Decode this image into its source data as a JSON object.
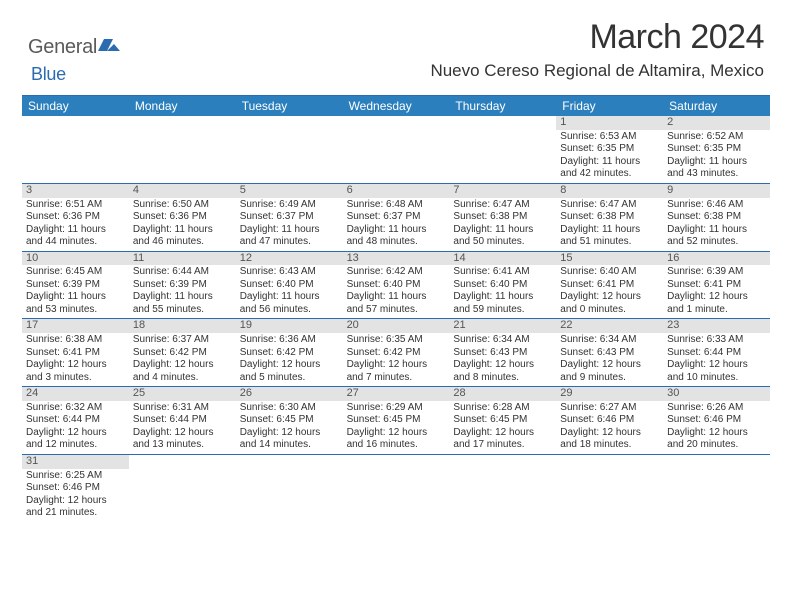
{
  "brand": {
    "main": "General",
    "sub": "Blue"
  },
  "title": "March 2024",
  "location": "Nuevo Cereso Regional de Altamira, Mexico",
  "dow": [
    "Sunday",
    "Monday",
    "Tuesday",
    "Wednesday",
    "Thursday",
    "Friday",
    "Saturday"
  ],
  "colors": {
    "header_bar": "#2b7fbd",
    "rule": "#2b6cb0",
    "day_bar": "#e3e3e3",
    "logo_grey": "#5a5a5a",
    "logo_blue": "#2b6cb0"
  },
  "weeks": [
    [
      null,
      null,
      null,
      null,
      null,
      {
        "n": "1",
        "sr": "Sunrise: 6:53 AM",
        "ss": "Sunset: 6:35 PM",
        "d1": "Daylight: 11 hours",
        "d2": "and 42 minutes."
      },
      {
        "n": "2",
        "sr": "Sunrise: 6:52 AM",
        "ss": "Sunset: 6:35 PM",
        "d1": "Daylight: 11 hours",
        "d2": "and 43 minutes."
      }
    ],
    [
      {
        "n": "3",
        "sr": "Sunrise: 6:51 AM",
        "ss": "Sunset: 6:36 PM",
        "d1": "Daylight: 11 hours",
        "d2": "and 44 minutes."
      },
      {
        "n": "4",
        "sr": "Sunrise: 6:50 AM",
        "ss": "Sunset: 6:36 PM",
        "d1": "Daylight: 11 hours",
        "d2": "and 46 minutes."
      },
      {
        "n": "5",
        "sr": "Sunrise: 6:49 AM",
        "ss": "Sunset: 6:37 PM",
        "d1": "Daylight: 11 hours",
        "d2": "and 47 minutes."
      },
      {
        "n": "6",
        "sr": "Sunrise: 6:48 AM",
        "ss": "Sunset: 6:37 PM",
        "d1": "Daylight: 11 hours",
        "d2": "and 48 minutes."
      },
      {
        "n": "7",
        "sr": "Sunrise: 6:47 AM",
        "ss": "Sunset: 6:38 PM",
        "d1": "Daylight: 11 hours",
        "d2": "and 50 minutes."
      },
      {
        "n": "8",
        "sr": "Sunrise: 6:47 AM",
        "ss": "Sunset: 6:38 PM",
        "d1": "Daylight: 11 hours",
        "d2": "and 51 minutes."
      },
      {
        "n": "9",
        "sr": "Sunrise: 6:46 AM",
        "ss": "Sunset: 6:38 PM",
        "d1": "Daylight: 11 hours",
        "d2": "and 52 minutes."
      }
    ],
    [
      {
        "n": "10",
        "sr": "Sunrise: 6:45 AM",
        "ss": "Sunset: 6:39 PM",
        "d1": "Daylight: 11 hours",
        "d2": "and 53 minutes."
      },
      {
        "n": "11",
        "sr": "Sunrise: 6:44 AM",
        "ss": "Sunset: 6:39 PM",
        "d1": "Daylight: 11 hours",
        "d2": "and 55 minutes."
      },
      {
        "n": "12",
        "sr": "Sunrise: 6:43 AM",
        "ss": "Sunset: 6:40 PM",
        "d1": "Daylight: 11 hours",
        "d2": "and 56 minutes."
      },
      {
        "n": "13",
        "sr": "Sunrise: 6:42 AM",
        "ss": "Sunset: 6:40 PM",
        "d1": "Daylight: 11 hours",
        "d2": "and 57 minutes."
      },
      {
        "n": "14",
        "sr": "Sunrise: 6:41 AM",
        "ss": "Sunset: 6:40 PM",
        "d1": "Daylight: 11 hours",
        "d2": "and 59 minutes."
      },
      {
        "n": "15",
        "sr": "Sunrise: 6:40 AM",
        "ss": "Sunset: 6:41 PM",
        "d1": "Daylight: 12 hours",
        "d2": "and 0 minutes."
      },
      {
        "n": "16",
        "sr": "Sunrise: 6:39 AM",
        "ss": "Sunset: 6:41 PM",
        "d1": "Daylight: 12 hours",
        "d2": "and 1 minute."
      }
    ],
    [
      {
        "n": "17",
        "sr": "Sunrise: 6:38 AM",
        "ss": "Sunset: 6:41 PM",
        "d1": "Daylight: 12 hours",
        "d2": "and 3 minutes."
      },
      {
        "n": "18",
        "sr": "Sunrise: 6:37 AM",
        "ss": "Sunset: 6:42 PM",
        "d1": "Daylight: 12 hours",
        "d2": "and 4 minutes."
      },
      {
        "n": "19",
        "sr": "Sunrise: 6:36 AM",
        "ss": "Sunset: 6:42 PM",
        "d1": "Daylight: 12 hours",
        "d2": "and 5 minutes."
      },
      {
        "n": "20",
        "sr": "Sunrise: 6:35 AM",
        "ss": "Sunset: 6:42 PM",
        "d1": "Daylight: 12 hours",
        "d2": "and 7 minutes."
      },
      {
        "n": "21",
        "sr": "Sunrise: 6:34 AM",
        "ss": "Sunset: 6:43 PM",
        "d1": "Daylight: 12 hours",
        "d2": "and 8 minutes."
      },
      {
        "n": "22",
        "sr": "Sunrise: 6:34 AM",
        "ss": "Sunset: 6:43 PM",
        "d1": "Daylight: 12 hours",
        "d2": "and 9 minutes."
      },
      {
        "n": "23",
        "sr": "Sunrise: 6:33 AM",
        "ss": "Sunset: 6:44 PM",
        "d1": "Daylight: 12 hours",
        "d2": "and 10 minutes."
      }
    ],
    [
      {
        "n": "24",
        "sr": "Sunrise: 6:32 AM",
        "ss": "Sunset: 6:44 PM",
        "d1": "Daylight: 12 hours",
        "d2": "and 12 minutes."
      },
      {
        "n": "25",
        "sr": "Sunrise: 6:31 AM",
        "ss": "Sunset: 6:44 PM",
        "d1": "Daylight: 12 hours",
        "d2": "and 13 minutes."
      },
      {
        "n": "26",
        "sr": "Sunrise: 6:30 AM",
        "ss": "Sunset: 6:45 PM",
        "d1": "Daylight: 12 hours",
        "d2": "and 14 minutes."
      },
      {
        "n": "27",
        "sr": "Sunrise: 6:29 AM",
        "ss": "Sunset: 6:45 PM",
        "d1": "Daylight: 12 hours",
        "d2": "and 16 minutes."
      },
      {
        "n": "28",
        "sr": "Sunrise: 6:28 AM",
        "ss": "Sunset: 6:45 PM",
        "d1": "Daylight: 12 hours",
        "d2": "and 17 minutes."
      },
      {
        "n": "29",
        "sr": "Sunrise: 6:27 AM",
        "ss": "Sunset: 6:46 PM",
        "d1": "Daylight: 12 hours",
        "d2": "and 18 minutes."
      },
      {
        "n": "30",
        "sr": "Sunrise: 6:26 AM",
        "ss": "Sunset: 6:46 PM",
        "d1": "Daylight: 12 hours",
        "d2": "and 20 minutes."
      }
    ],
    [
      {
        "n": "31",
        "sr": "Sunrise: 6:25 AM",
        "ss": "Sunset: 6:46 PM",
        "d1": "Daylight: 12 hours",
        "d2": "and 21 minutes."
      },
      null,
      null,
      null,
      null,
      null,
      null
    ]
  ]
}
